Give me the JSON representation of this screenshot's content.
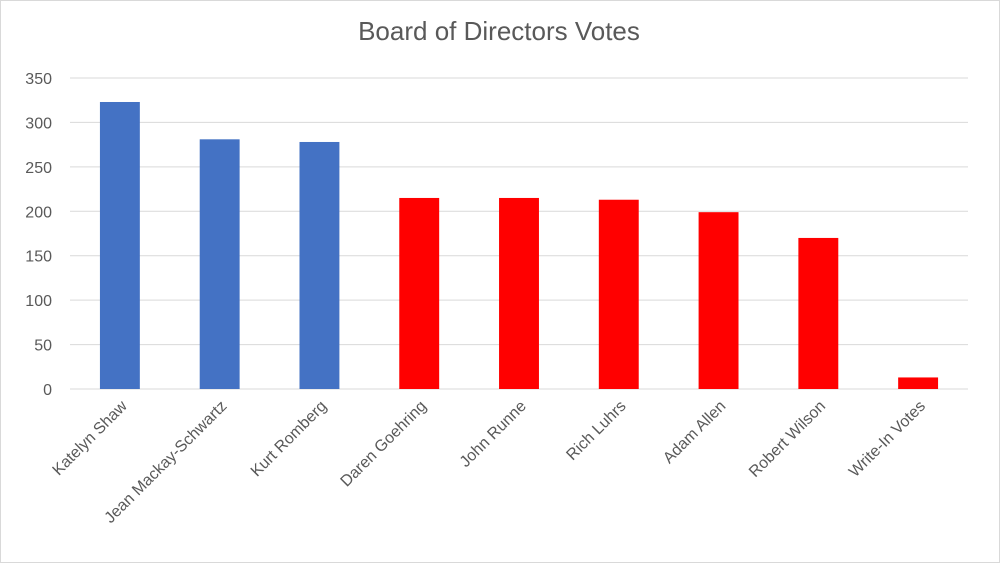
{
  "chart_data": {
    "type": "bar",
    "title": "Board of Directors Votes",
    "categories": [
      "Katelyn Shaw",
      "Jean Mackay-Schwartz",
      "Kurt Romberg",
      "Daren Goehring",
      "John Runne",
      "Rich Luhrs",
      "Adam Allen",
      "Robert Wilson",
      "Write-In Votes"
    ],
    "values": [
      323,
      281,
      278,
      215,
      215,
      213,
      199,
      170,
      13
    ],
    "bar_colors": [
      "#4472c4",
      "#4472c4",
      "#4472c4",
      "#ff0000",
      "#ff0000",
      "#ff0000",
      "#ff0000",
      "#ff0000",
      "#ff0000"
    ],
    "ylim": [
      0,
      350
    ],
    "yticks": [
      "0",
      "50",
      "100",
      "150",
      "200",
      "250",
      "300",
      "350"
    ],
    "grid": true,
    "legend": "none",
    "xlabel": "",
    "ylabel": ""
  }
}
